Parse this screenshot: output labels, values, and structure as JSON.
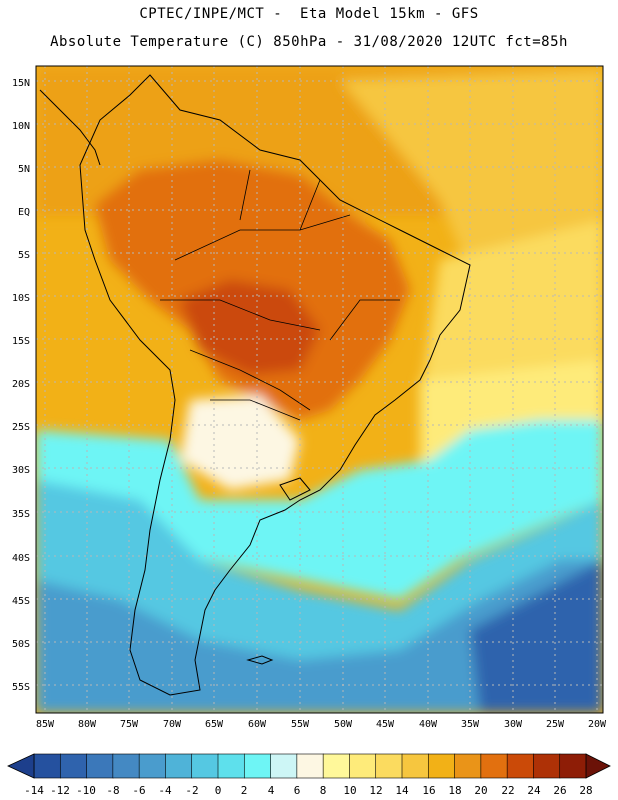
{
  "header": {
    "line1": "CPTEC/INPE/MCT -  Eta Model 15km - GFS",
    "line2": "Absolute Temperature (C) 850hPa - 31/08/2020 12UTC fct=85h"
  },
  "map": {
    "lat_labels": [
      "15N",
      "10N",
      "5N",
      "EQ",
      "5S",
      "10S",
      "15S",
      "20S",
      "25S",
      "30S",
      "35S",
      "40S",
      "45S",
      "50S",
      "55S"
    ],
    "lon_labels": [
      "85W",
      "80W",
      "75W",
      "70W",
      "65W",
      "60W",
      "55W",
      "50W",
      "45W",
      "40W",
      "35W",
      "30W",
      "25W",
      "20W"
    ]
  },
  "colorbar": {
    "ticks": [
      "-14",
      "-12",
      "-10",
      "-8",
      "-6",
      "-4",
      "-2",
      "0",
      "2",
      "4",
      "6",
      "8",
      "10",
      "12",
      "14",
      "16",
      "18",
      "20",
      "22",
      "24",
      "26",
      "28"
    ],
    "colors": [
      "#1d3f8c",
      "#25519f",
      "#2f63ad",
      "#3b78ba",
      "#4489c3",
      "#4a9ccd",
      "#4fb3d8",
      "#55c8e2",
      "#5ee0ec",
      "#6ef5f5",
      "#cdf6f6",
      "#fdf7e3",
      "#fff89a",
      "#feeb7a",
      "#fbdb5f",
      "#f6c63f",
      "#f2b117",
      "#ea9418",
      "#e2700f",
      "#cb4a08",
      "#ae3106",
      "#8e1d06",
      "#6b1208"
    ]
  },
  "legend_colors": {
    "ocean_north": "#f2b117",
    "land_hot": "#e2700f",
    "south_cold": "#4fb3d8",
    "cold_far_south": "#2f63ad"
  }
}
